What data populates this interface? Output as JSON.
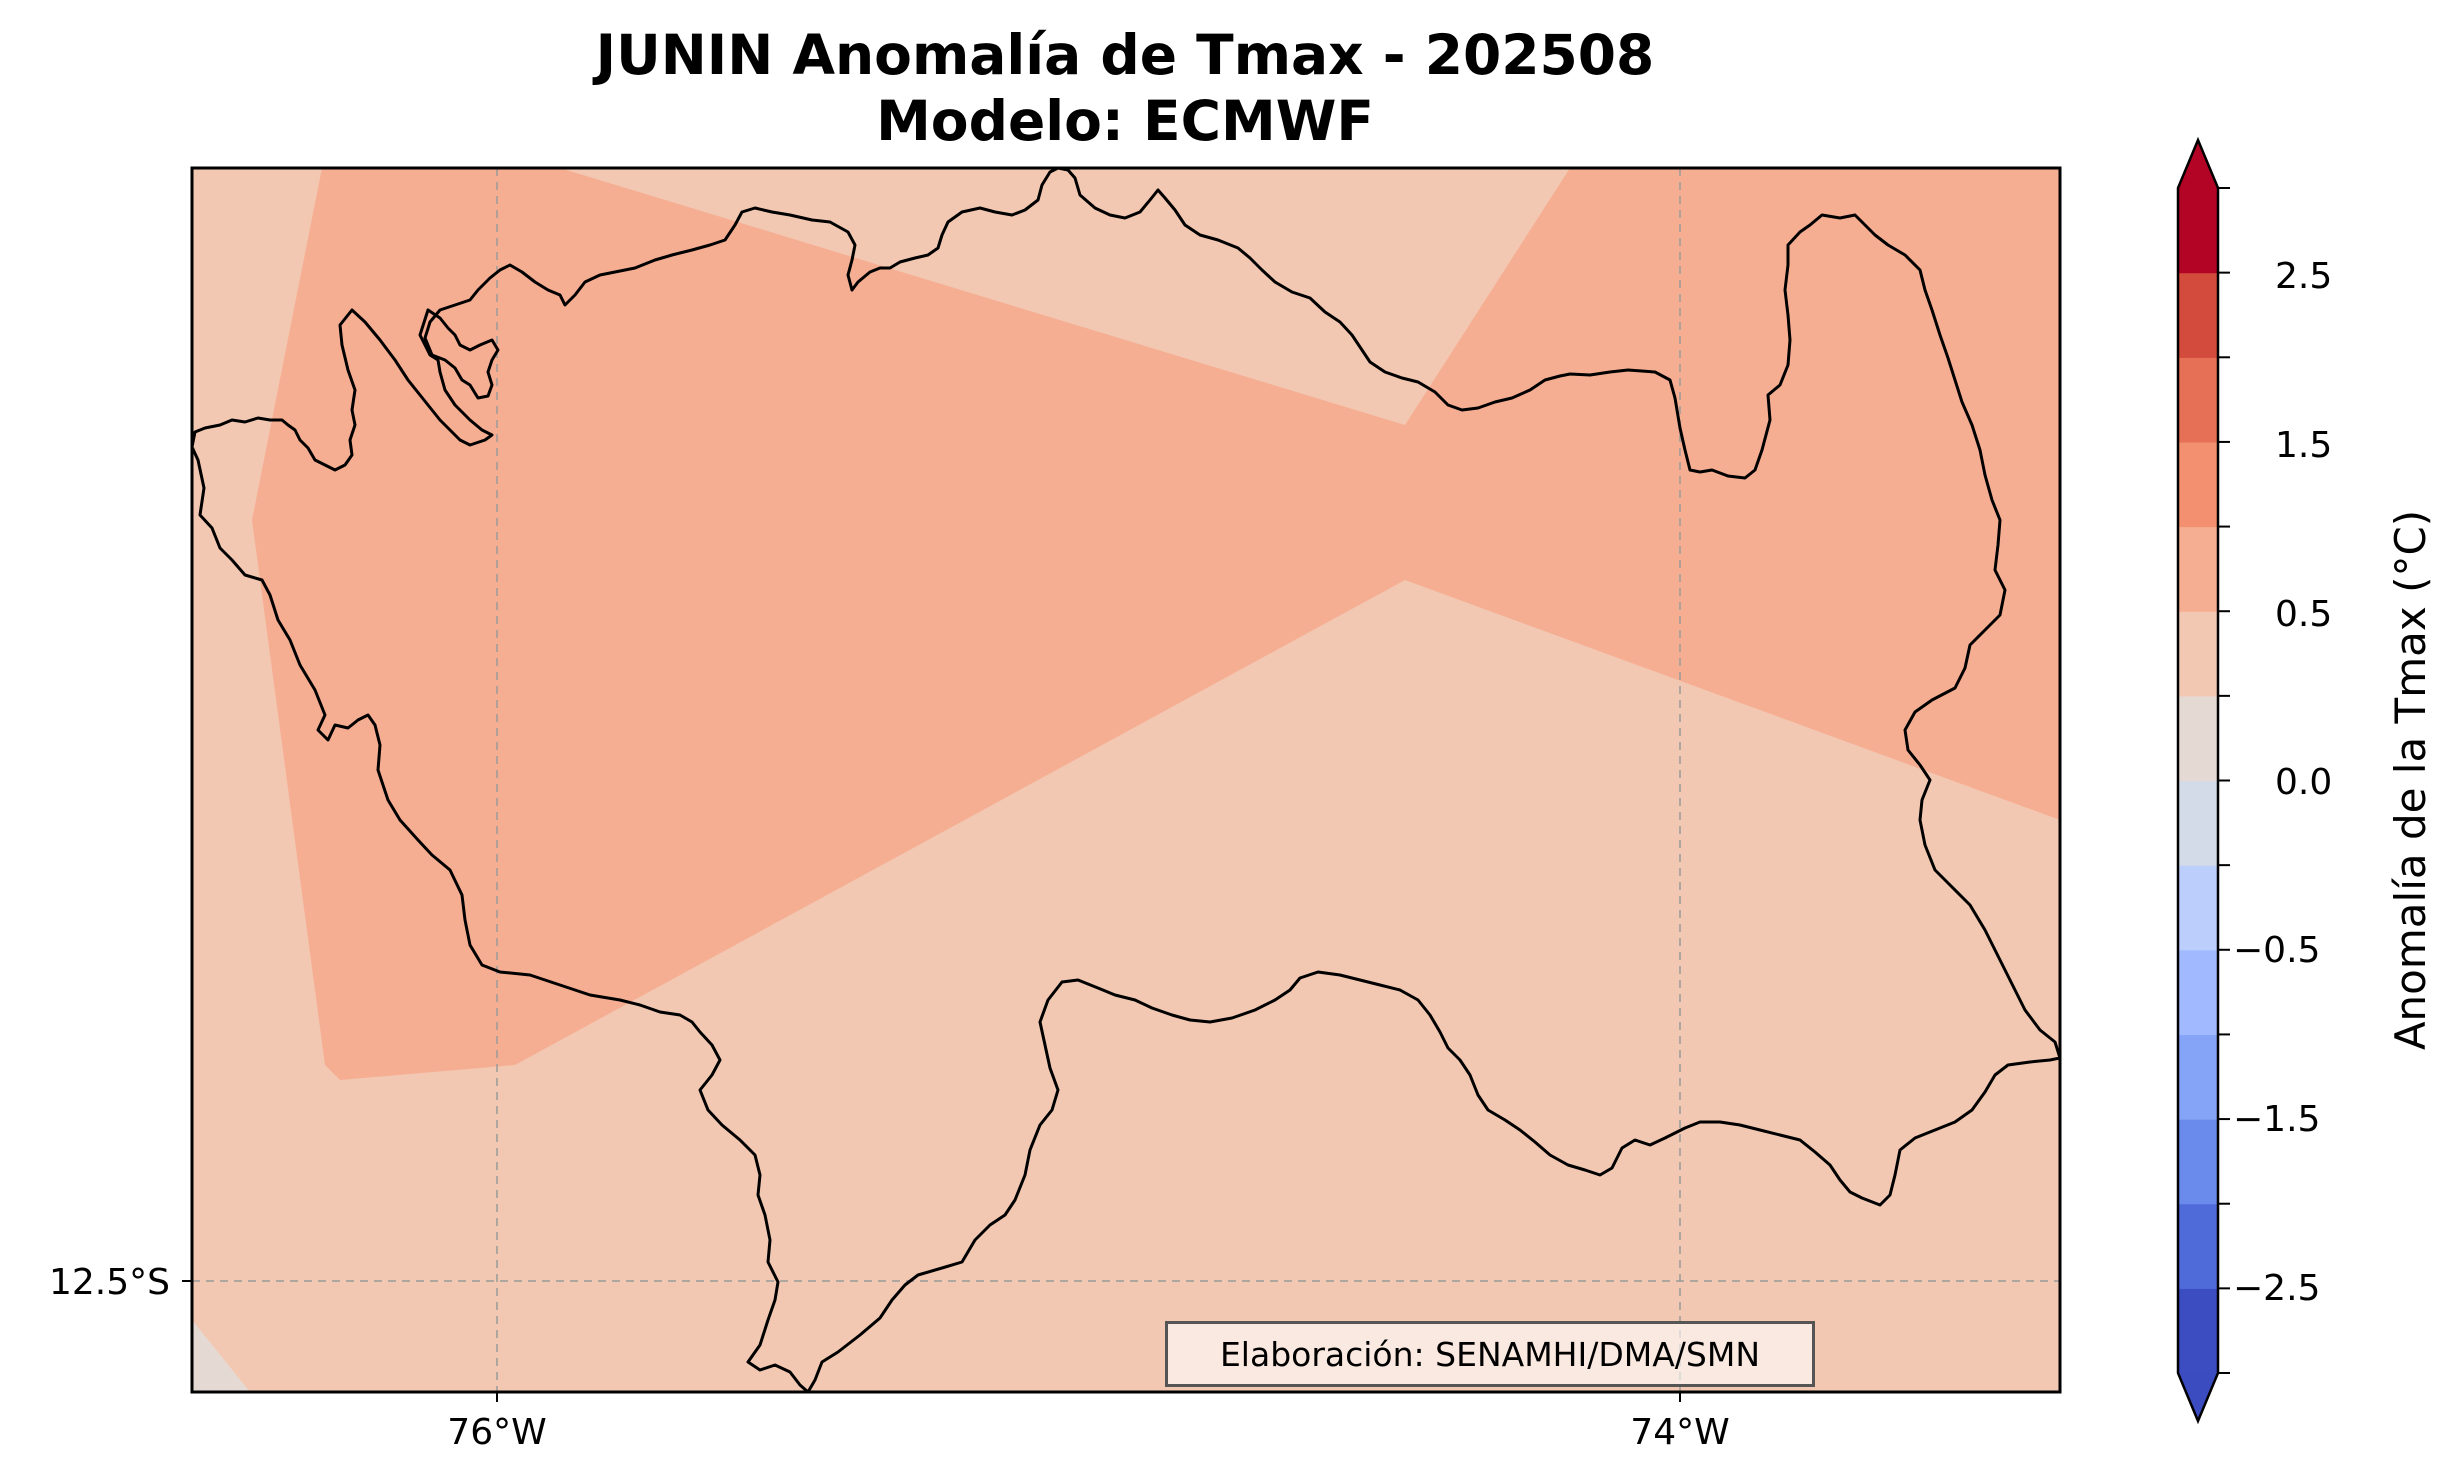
{
  "title": {
    "line1": "JUNIN Anomalía de Tmax - 202508",
    "line2": "Modelo: ECMWF"
  },
  "map": {
    "region": "JUNIN",
    "x_ticks": [
      "76°W",
      "74°W"
    ],
    "y_ticks": [
      "12.5°S"
    ],
    "credit": "Elaboración: SENAMHI/DMA/SMN",
    "field_colors": {
      "anomaly_0_to_0p5": "#f2c8b2",
      "anomaly_0p5_to_1": "#f6ae93",
      "anomaly_m0p25_to_0": "#e5dad3"
    }
  },
  "colorbar": {
    "label": "Anomalía de la Tmax (°C)",
    "ticks": [
      "2.5",
      "1.5",
      "0.5",
      "0.0",
      "−0.5",
      "−1.5",
      "−2.5"
    ],
    "extend": "both",
    "levels": [
      -3.0,
      -2.5,
      -2.0,
      -1.5,
      -1.0,
      -0.5,
      -0.25,
      0.0,
      0.25,
      0.5,
      1.0,
      1.5,
      2.0,
      2.5,
      3.0
    ],
    "colors": [
      "#3c4dc2",
      "#4f6ad9",
      "#6a8bec",
      "#85a4f8",
      "#a1baff",
      "#bccefb",
      "#d3dbe8",
      "#e5dad3",
      "#f2c8b2",
      "#f6ae93",
      "#f2906f",
      "#e67056",
      "#d34b3c",
      "#b40426"
    ],
    "arrow_low_color": "#3b4cc0",
    "arrow_high_color": "#b40426"
  }
}
